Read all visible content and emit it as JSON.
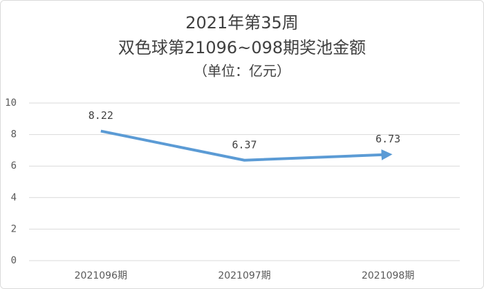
{
  "chart_data": {
    "type": "line",
    "title": [
      "2021年第35周",
      "双色球第21096~098期奖池金额"
    ],
    "subtitle": "（单位：亿元）",
    "categories": [
      "2021096期",
      "2021097期",
      "2021098期"
    ],
    "values": [
      8.22,
      6.37,
      6.73
    ],
    "color": "#5b9bd5",
    "ylim": [
      0,
      10
    ],
    "yticks": [
      0,
      2,
      4,
      6,
      8,
      10
    ],
    "grid": true
  }
}
